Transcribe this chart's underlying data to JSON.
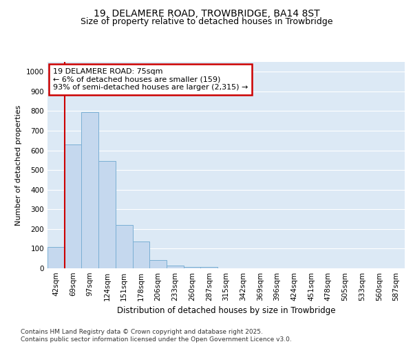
{
  "title1": "19, DELAMERE ROAD, TROWBRIDGE, BA14 8ST",
  "title2": "Size of property relative to detached houses in Trowbridge",
  "xlabel": "Distribution of detached houses by size in Trowbridge",
  "ylabel": "Number of detached properties",
  "categories": [
    "42sqm",
    "69sqm",
    "97sqm",
    "124sqm",
    "151sqm",
    "178sqm",
    "206sqm",
    "233sqm",
    "260sqm",
    "287sqm",
    "315sqm",
    "342sqm",
    "369sqm",
    "396sqm",
    "424sqm",
    "451sqm",
    "478sqm",
    "505sqm",
    "533sqm",
    "560sqm",
    "587sqm"
  ],
  "values": [
    110,
    630,
    795,
    545,
    220,
    135,
    42,
    15,
    8,
    7,
    0,
    0,
    0,
    0,
    0,
    0,
    0,
    0,
    0,
    0,
    0
  ],
  "bar_color": "#c5d8ee",
  "bar_edge_color": "#7aafd4",
  "red_line_x": 0.5,
  "annotation_text": "19 DELAMERE ROAD: 75sqm\n← 6% of detached houses are smaller (159)\n93% of semi-detached houses are larger (2,315) →",
  "annotation_box_color": "#ffffff",
  "annotation_border_color": "#cc0000",
  "ylim": [
    0,
    1050
  ],
  "yticks": [
    0,
    100,
    200,
    300,
    400,
    500,
    600,
    700,
    800,
    900,
    1000
  ],
  "background_color": "#dce9f5",
  "grid_color": "#ffffff",
  "footer_text": "Contains HM Land Registry data © Crown copyright and database right 2025.\nContains public sector information licensed under the Open Government Licence v3.0.",
  "title1_fontsize": 10,
  "title2_fontsize": 9,
  "xlabel_fontsize": 8.5,
  "ylabel_fontsize": 8,
  "tick_fontsize": 7.5,
  "annotation_fontsize": 8,
  "footer_fontsize": 6.5
}
